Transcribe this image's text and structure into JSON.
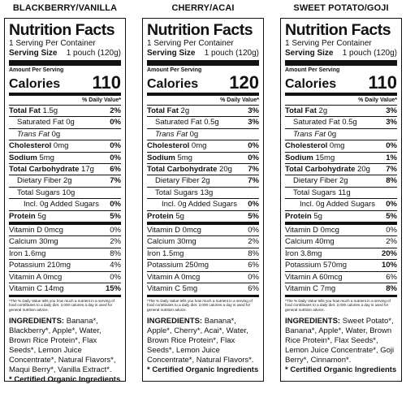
{
  "header_common": {
    "title": "Nutrition Facts",
    "servings_per": "1 Serving Per Container",
    "serving_size_label": "Serving Size",
    "serving_size_value": "1 pouch (120g)",
    "amount_per_serving": "Amount Per Serving",
    "calories_label": "Calories",
    "dv_header": "% Daily Value*",
    "certified": "* Certified Organic Ingredients",
    "ingredients_label": "INGREDIENTS:"
  },
  "panels": [
    {
      "flavor": "BLACKBERRY/VANILLA",
      "calories": "110",
      "rows": {
        "total_fat": [
          "Total Fat",
          "1.5g",
          "2%"
        ],
        "sat_fat": [
          "Saturated Fat",
          "0g",
          "0%"
        ],
        "trans_fat": [
          "Trans Fat",
          "0g"
        ],
        "cholesterol": [
          "Cholesterol",
          "0mg",
          "0%"
        ],
        "sodium": [
          "Sodium",
          "5mg",
          "0%"
        ],
        "carb": [
          "Total Carbohydrate",
          "17g",
          "6%"
        ],
        "fiber": [
          "Dietary Fiber",
          "2g",
          "7%"
        ],
        "sugars": [
          "Total Sugars",
          "10g"
        ],
        "added": [
          "Incl. 0g Added Sugars",
          "0%"
        ],
        "protein": [
          "Protein",
          "5g",
          "5%"
        ],
        "vit_d": [
          "Vitamin D",
          "0mcg",
          "0%"
        ],
        "calcium": [
          "Calcium",
          "30mg",
          "2%"
        ],
        "iron": [
          "Iron",
          "1.6mg",
          "8%"
        ],
        "potassium": [
          "Potassium",
          "210mg",
          "4%"
        ],
        "vit_a": [
          "Vitamin A",
          "0mcg",
          "0%"
        ],
        "vit_c": [
          "Vitamin C",
          "14mg",
          "15%"
        ]
      },
      "footnote": "*The % Daily Value tells you how much a nutrient in a serving of food contributes to a daily diet. 2,000 calories a day is used for general nutrition advice.",
      "ingredients": "Banana*, Blackberry*, Apple*, Water, Brown Rice Protein*, Flax Seeds*, Lemon Juice Concentrate*, Natural Flavors*, Maqui Berry*, Vanilla Extract*."
    },
    {
      "flavor": "CHERRY/ACAI",
      "calories": "120",
      "rows": {
        "total_fat": [
          "Total Fat",
          "2g",
          "3%"
        ],
        "sat_fat": [
          "Saturated Fat",
          "0.5g",
          "3%"
        ],
        "trans_fat": [
          "Trans Fat",
          "0g"
        ],
        "cholesterol": [
          "Cholesterol",
          "0mg",
          "0%"
        ],
        "sodium": [
          "Sodium",
          "5mg",
          "0%"
        ],
        "carb": [
          "Total Carbohydrate",
          "20g",
          "7%"
        ],
        "fiber": [
          "Dietary Fiber",
          "2g",
          "7%"
        ],
        "sugars": [
          "Total Sugars",
          "13g"
        ],
        "added": [
          "Incl. 0g Added Sugars",
          "0%"
        ],
        "protein": [
          "Protein",
          "5g",
          "5%"
        ],
        "vit_d": [
          "Vitamin D",
          "0mcg",
          "0%"
        ],
        "calcium": [
          "Calcium",
          "30mg",
          "2%"
        ],
        "iron": [
          "Iron",
          "1.5mg",
          "8%"
        ],
        "potassium": [
          "Potassium",
          "250mg",
          "6%"
        ],
        "vit_a": [
          "Vitamin A",
          "0mcg",
          "0%"
        ],
        "vit_c": [
          "Vitamin C",
          "5mg",
          "6%"
        ]
      },
      "footnote": "*The % Daily Value tells you how much a nutrient in a serving of food contributes to a daily diet. 2,000 calories a day is used for general nutrition advice.",
      "ingredients": "Banana*, Apple*, Cherry*, Acai*, Water, Brown Rice Protein*, Flax Seeds*, Lemon Juice Concentrate*, Natural Flavors*."
    },
    {
      "flavor": "SWEET POTATO/GOJI",
      "calories": "110",
      "rows": {
        "total_fat": [
          "Total Fat",
          "2g",
          "3%"
        ],
        "sat_fat": [
          "Saturated Fat",
          "0.5g",
          "3%"
        ],
        "trans_fat": [
          "Trans Fat",
          "0g"
        ],
        "cholesterol": [
          "Cholesterol",
          "0mg",
          "0%"
        ],
        "sodium": [
          "Sodium",
          "15mg",
          "1%"
        ],
        "carb": [
          "Total Carbohydrate",
          "20g",
          "7%"
        ],
        "fiber": [
          "Dietary Fiber",
          "2g",
          "8%"
        ],
        "sugars": [
          "Total Sugars",
          "11g"
        ],
        "added": [
          "Incl. 0g Added Sugars",
          "0%"
        ],
        "protein": [
          "Protein",
          "5g",
          "5%"
        ],
        "vit_d": [
          "Vitamin D",
          "0mcg",
          "0%"
        ],
        "calcium": [
          "Calcium",
          "40mg",
          "2%"
        ],
        "iron": [
          "Iron",
          "3.8mg",
          "20%"
        ],
        "potassium": [
          "Potassium",
          "570mg",
          "10%"
        ],
        "vit_a": [
          "Vitamin A",
          "60mcg",
          "6%"
        ],
        "vit_c": [
          "Vitamin C",
          "7mg",
          "8%"
        ]
      },
      "footnote": "*The % Daily Value tells you how much a nutrient in a serving of food contributes to a daily diet. 2,000 calories a day is used for general nutrition advice.",
      "ingredients": "Sweet Potato*, Banana*, Apple*, Water, Brown Rice Protein*, Flax Seeds*, Lemon Juice Concentrate*, Goji Berry*, Cinnamon*."
    }
  ]
}
